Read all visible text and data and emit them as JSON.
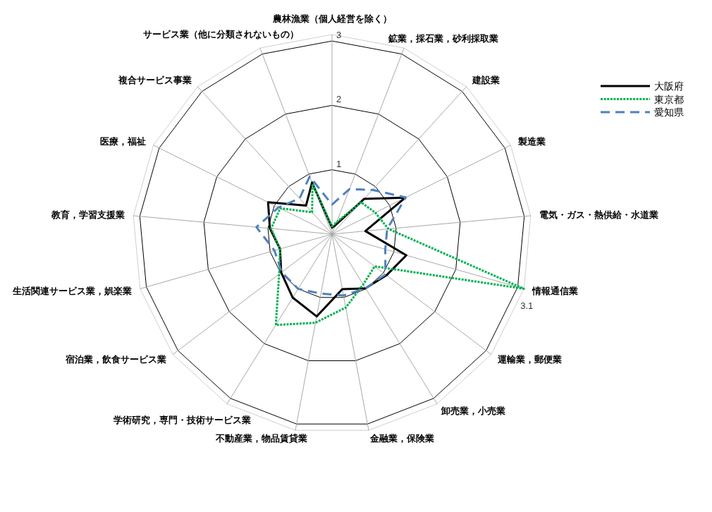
{
  "chart_data": {
    "type": "radar",
    "categories": [
      "農林漁業（個人経営を除く）",
      "鉱業，採石業，砂利採取業",
      "建設業",
      "製造業",
      "電気・ガス・熱供給・水道業",
      "情報通信業",
      "運輸業，郵便業",
      "卸売業，小売業",
      "金融業，保険業",
      "不動産業，物品賃貸業",
      "学術研究，専門・技術サービス業",
      "宿泊業，飲食サービス業",
      "生活関連サービス業，娯楽業",
      "教育，学習支援業",
      "医療，福祉",
      "複合サービス事業",
      "サービス業（他に分類されないもの）"
    ],
    "series": [
      {
        "name": "大阪府",
        "color": "#000000",
        "line_style": "solid",
        "values": [
          0.1,
          0.15,
          0.74,
          1.27,
          0.52,
          1.2,
          1.06,
          0.99,
          0.87,
          1.3,
          1.16,
          0.99,
          0.84,
          0.97,
          1.11,
          0.6,
          0.86
        ]
      },
      {
        "name": "東京都",
        "color": "#00b050",
        "line_style": "dotted",
        "values": [
          0.12,
          0.2,
          0.67,
          0.75,
          0.88,
          3.1,
          0.83,
          0.92,
          1.16,
          1.4,
          1.66,
          1.03,
          0.84,
          0.95,
          0.9,
          0.46,
          0.84
        ],
        "value_labels": [
          null,
          null,
          null,
          null,
          null,
          "3.1",
          null,
          null,
          null,
          null,
          null,
          null,
          null,
          null,
          null,
          null,
          null
        ]
      },
      {
        "name": "愛知県",
        "color": "#4f81bd",
        "line_style": "dashed",
        "values": [
          0.46,
          0.75,
          0.93,
          1.28,
          0.86,
          0.86,
          1.04,
          0.99,
          0.97,
          0.94,
          1.0,
          0.98,
          0.93,
          1.18,
          0.93,
          0.75,
          0.96
        ]
      }
    ],
    "ylim": [
      0,
      3.1
    ],
    "yticks": [
      1,
      2,
      3
    ],
    "grid": true,
    "legend": "top right"
  }
}
